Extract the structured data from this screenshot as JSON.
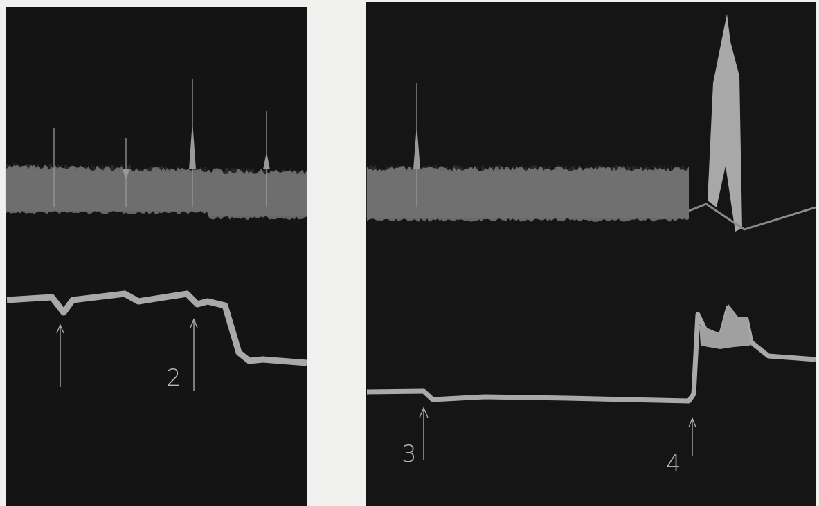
{
  "panels": [
    {
      "markers": [
        "2"
      ]
    },
    {
      "markers": [
        "3",
        "4"
      ]
    }
  ]
}
